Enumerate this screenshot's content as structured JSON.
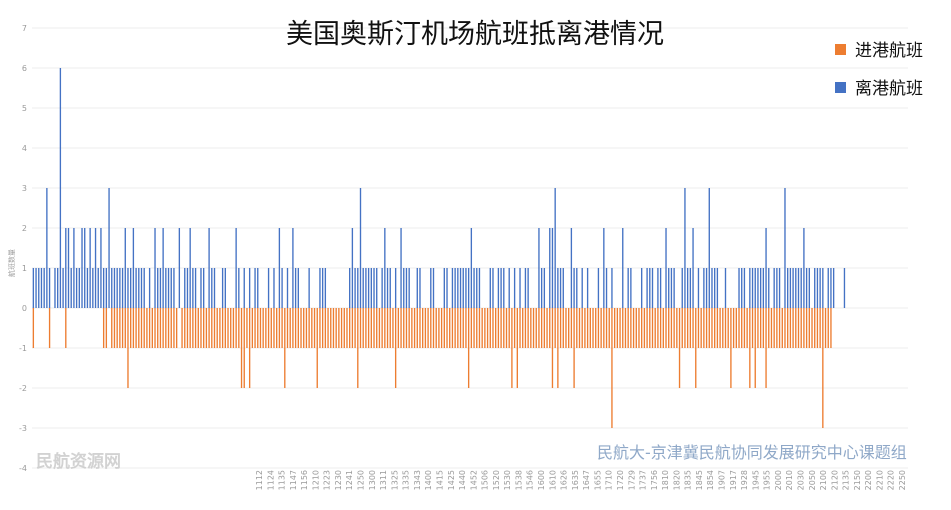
{
  "chart_data": {
    "type": "bar",
    "title": "美国奥斯汀机场航班抵离港情况",
    "xlabel": "",
    "ylabel": "航班数量",
    "ylim": [
      -4,
      7
    ],
    "yticks": [
      "-4",
      "-3",
      "-2",
      "-1",
      "0",
      "1",
      "2",
      "3",
      "4",
      "5",
      "6",
      "7"
    ],
    "grid": true,
    "legend_position": "top-right",
    "credit": "民航大-京津冀民航协同发展研究中心课题组",
    "watermark": "民航资源网",
    "x_tick_labels": [
      "1112",
      "1124",
      "1135",
      "1147",
      "1156",
      "1210",
      "1223",
      "1230",
      "1241",
      "1250",
      "1300",
      "1311",
      "1325",
      "1335",
      "1343",
      "1400",
      "1415",
      "1425",
      "1440",
      "1452",
      "1506",
      "1520",
      "1530",
      "1538",
      "1546",
      "1600",
      "1610",
      "1626",
      "1635",
      "1647",
      "1655",
      "1710",
      "1720",
      "1729",
      "1737",
      "1756",
      "1810",
      "1820",
      "1835",
      "1845",
      "1854",
      "1907",
      "1917",
      "1928",
      "1945",
      "1955",
      "2000",
      "2010",
      "2030",
      "2050",
      "2100",
      "2120",
      "2135",
      "2150",
      "2200",
      "2210",
      "2220",
      "2250"
    ],
    "series": [
      {
        "name": "进港航班",
        "color": "#ED7D31",
        "values": [
          1,
          0,
          0,
          0,
          0,
          0,
          1,
          0,
          0,
          0,
          0,
          0,
          1,
          0,
          0,
          0,
          0,
          0,
          0,
          0,
          0,
          0,
          0,
          0,
          0,
          0,
          1,
          1,
          0,
          1,
          1,
          1,
          1,
          1,
          1,
          2,
          1,
          1,
          1,
          1,
          1,
          1,
          1,
          1,
          1,
          1,
          1,
          1,
          1,
          1,
          1,
          1,
          1,
          1,
          0,
          1,
          1,
          1,
          1,
          1,
          1,
          1,
          1,
          1,
          1,
          1,
          1,
          1,
          1,
          1,
          1,
          1,
          1,
          1,
          1,
          1,
          1,
          2,
          2,
          1,
          2,
          1,
          1,
          1,
          1,
          1,
          1,
          1,
          1,
          1,
          1,
          1,
          1,
          2,
          1,
          1,
          1,
          1,
          1,
          1,
          1,
          1,
          1,
          1,
          1,
          2,
          1,
          1,
          1,
          1,
          1,
          1,
          1,
          1,
          1,
          1,
          1,
          1,
          1,
          1,
          2,
          1,
          1,
          1,
          1,
          1,
          1,
          1,
          1,
          1,
          1,
          1,
          1,
          1,
          2,
          1,
          1,
          1,
          1,
          1,
          1,
          1,
          1,
          1,
          1,
          1,
          1,
          1,
          1,
          1,
          1,
          1,
          1,
          1,
          1,
          1,
          1,
          1,
          1,
          1,
          1,
          2,
          1,
          1,
          1,
          1,
          1,
          1,
          1,
          1,
          1,
          1,
          1,
          1,
          1,
          1,
          1,
          2,
          1,
          2,
          1,
          1,
          1,
          1,
          1,
          1,
          1,
          1,
          1,
          1,
          1,
          1,
          2,
          1,
          2,
          1,
          1,
          1,
          1,
          1,
          2,
          1,
          1,
          1,
          1,
          1,
          1,
          1,
          1,
          1,
          1,
          1,
          1,
          1,
          3,
          1,
          1,
          1,
          1,
          1,
          1,
          1,
          1,
          1,
          1,
          1,
          1,
          1,
          1,
          1,
          1,
          1,
          1,
          1,
          1,
          1,
          1,
          1,
          1,
          2,
          1,
          1,
          1,
          1,
          1,
          2,
          1,
          1,
          1,
          1,
          1,
          1,
          1,
          1,
          1,
          1,
          1,
          1,
          2,
          1,
          1,
          1,
          1,
          1,
          1,
          2,
          1,
          2,
          1,
          1,
          1,
          2,
          1,
          1,
          1,
          1,
          1,
          1,
          1,
          1,
          1,
          1,
          1,
          1,
          1,
          1,
          1,
          1,
          1,
          1,
          1,
          1,
          3,
          1,
          1,
          1
        ]
      },
      {
        "name": "离港航班",
        "color": "#4472C4",
        "values": [
          1,
          1,
          1,
          1,
          1,
          3,
          1,
          0,
          1,
          1,
          6,
          1,
          2,
          2,
          1,
          2,
          1,
          1,
          2,
          2,
          1,
          2,
          1,
          2,
          1,
          2,
          1,
          1,
          3,
          1,
          1,
          1,
          1,
          1,
          2,
          1,
          1,
          2,
          1,
          1,
          1,
          1,
          0,
          1,
          0,
          2,
          1,
          1,
          2,
          1,
          1,
          1,
          1,
          0,
          2,
          0,
          1,
          1,
          2,
          1,
          1,
          0,
          1,
          1,
          0,
          2,
          1,
          1,
          0,
          0,
          1,
          1,
          0,
          0,
          0,
          2,
          1,
          0,
          1,
          0,
          1,
          0,
          1,
          1,
          0,
          0,
          0,
          1,
          0,
          1,
          0,
          2,
          1,
          0,
          1,
          0,
          2,
          1,
          1,
          0,
          0,
          0,
          1,
          0,
          0,
          0,
          1,
          1,
          1,
          0,
          0,
          0,
          0,
          0,
          0,
          0,
          0,
          1,
          2,
          1,
          1,
          3,
          1,
          1,
          1,
          1,
          1,
          1,
          0,
          1,
          2,
          1,
          1,
          0,
          1,
          0,
          2,
          1,
          1,
          1,
          0,
          0,
          1,
          1,
          0,
          0,
          0,
          1,
          1,
          0,
          0,
          0,
          1,
          1,
          0,
          1,
          1,
          1,
          1,
          1,
          1,
          1,
          2,
          1,
          1,
          1,
          0,
          0,
          0,
          1,
          1,
          0,
          1,
          1,
          1,
          0,
          1,
          0,
          1,
          0,
          1,
          0,
          1,
          1,
          0,
          0,
          0,
          2,
          1,
          1,
          0,
          2,
          2,
          3,
          1,
          1,
          1,
          0,
          0,
          2,
          1,
          1,
          0,
          1,
          0,
          1,
          0,
          0,
          0,
          1,
          0,
          2,
          1,
          0,
          1,
          0,
          0,
          0,
          2,
          0,
          1,
          1,
          0,
          0,
          0,
          1,
          0,
          1,
          1,
          1,
          0,
          1,
          1,
          0,
          2,
          1,
          1,
          1,
          0,
          0,
          1,
          3,
          1,
          1,
          2,
          0,
          1,
          0,
          1,
          1,
          3,
          1,
          1,
          1,
          0,
          0,
          1,
          0,
          0,
          0,
          0,
          1,
          1,
          1,
          0,
          1,
          1,
          1,
          1,
          1,
          1,
          2,
          1,
          0,
          1,
          1,
          1,
          0,
          3,
          1,
          1,
          1,
          1,
          1,
          1,
          2,
          1,
          1,
          0,
          1,
          1,
          1,
          1,
          0,
          1,
          1,
          1,
          0,
          0,
          0,
          1,
          0,
          0,
          0,
          0,
          0,
          0,
          0,
          0,
          0,
          0,
          0,
          0,
          0,
          0,
          0,
          0,
          0,
          0,
          0,
          0,
          0,
          0,
          0
        ]
      }
    ]
  }
}
